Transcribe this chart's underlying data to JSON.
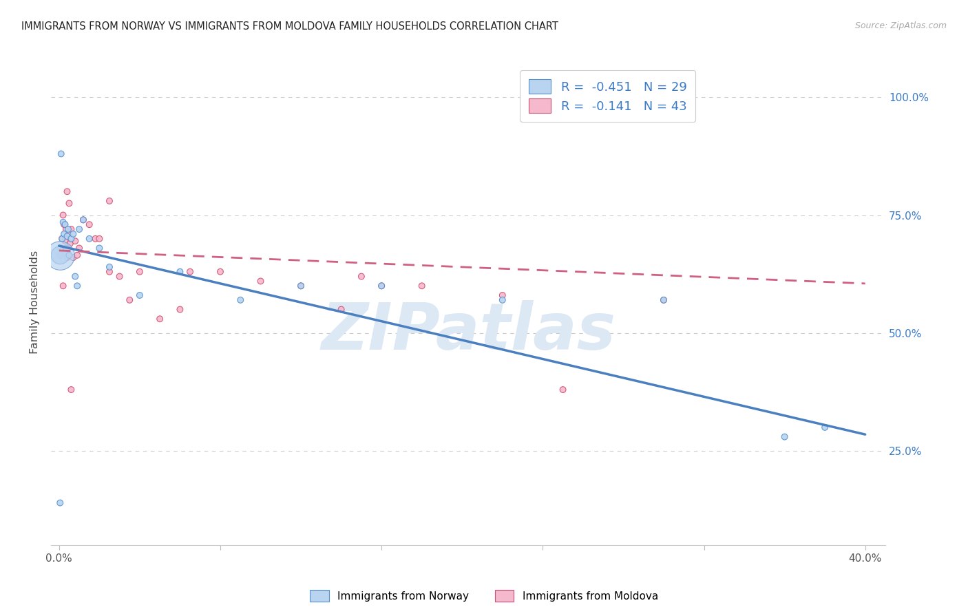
{
  "title": "IMMIGRANTS FROM NORWAY VS IMMIGRANTS FROM MOLDOVA FAMILY HOUSEHOLDS CORRELATION CHART",
  "source": "Source: ZipAtlas.com",
  "ylabel": "Family Households",
  "legend_norway": "Immigrants from Norway",
  "legend_moldova": "Immigrants from Moldova",
  "R_norway": -0.451,
  "N_norway": 29,
  "R_moldova": -0.141,
  "N_moldova": 43,
  "norway_face_color": "#b8d4f0",
  "norway_edge_color": "#5590d0",
  "moldova_face_color": "#f5b8cc",
  "moldova_edge_color": "#d05070",
  "norway_line_color": "#4a7fc0",
  "moldova_line_color": "#d06080",
  "norway_x": [
    0.0005,
    0.001,
    0.0015,
    0.002,
    0.0025,
    0.003,
    0.0035,
    0.004,
    0.0045,
    0.005,
    0.006,
    0.007,
    0.008,
    0.009,
    0.01,
    0.012,
    0.015,
    0.02,
    0.025,
    0.04,
    0.06,
    0.09,
    0.12,
    0.16,
    0.22,
    0.3,
    0.36,
    0.38,
    0.0005
  ],
  "norway_y": [
    0.665,
    0.88,
    0.7,
    0.735,
    0.71,
    0.73,
    0.68,
    0.705,
    0.72,
    0.665,
    0.7,
    0.71,
    0.62,
    0.6,
    0.72,
    0.74,
    0.7,
    0.68,
    0.64,
    0.58,
    0.63,
    0.57,
    0.6,
    0.6,
    0.57,
    0.57,
    0.28,
    0.3,
    0.14
  ],
  "norway_sizes": [
    350,
    40,
    40,
    40,
    40,
    40,
    40,
    40,
    40,
    40,
    40,
    40,
    40,
    40,
    40,
    40,
    40,
    40,
    40,
    40,
    40,
    40,
    40,
    40,
    40,
    40,
    40,
    40,
    40
  ],
  "moldova_x": [
    0.0005,
    0.001,
    0.0015,
    0.002,
    0.0025,
    0.003,
    0.0035,
    0.004,
    0.0045,
    0.005,
    0.0055,
    0.006,
    0.007,
    0.008,
    0.009,
    0.01,
    0.012,
    0.015,
    0.018,
    0.02,
    0.025,
    0.025,
    0.03,
    0.035,
    0.04,
    0.05,
    0.06,
    0.065,
    0.08,
    0.1,
    0.12,
    0.14,
    0.15,
    0.16,
    0.18,
    0.22,
    0.25,
    0.3,
    0.002,
    0.003,
    0.004,
    0.005,
    0.006
  ],
  "moldova_y": [
    0.665,
    0.68,
    0.7,
    0.75,
    0.73,
    0.695,
    0.72,
    0.66,
    0.71,
    0.665,
    0.69,
    0.72,
    0.66,
    0.695,
    0.665,
    0.68,
    0.74,
    0.73,
    0.7,
    0.7,
    0.78,
    0.63,
    0.62,
    0.57,
    0.63,
    0.53,
    0.55,
    0.63,
    0.63,
    0.61,
    0.6,
    0.55,
    0.62,
    0.6,
    0.6,
    0.58,
    0.38,
    0.57,
    0.6,
    0.67,
    0.8,
    0.775,
    0.38
  ],
  "moldova_sizes": [
    40,
    40,
    40,
    40,
    40,
    40,
    40,
    40,
    40,
    40,
    40,
    40,
    40,
    40,
    40,
    40,
    40,
    40,
    40,
    40,
    40,
    40,
    40,
    40,
    40,
    40,
    40,
    40,
    40,
    40,
    40,
    40,
    40,
    40,
    40,
    40,
    40,
    40,
    40,
    40,
    40,
    40,
    40
  ],
  "norway_line_x": [
    0.0,
    0.4
  ],
  "norway_line_y": [
    0.685,
    0.285
  ],
  "moldova_line_x": [
    0.0,
    0.4
  ],
  "moldova_line_y": [
    0.675,
    0.605
  ],
  "xlim": [
    -0.004,
    0.41
  ],
  "ylim": [
    0.05,
    1.08
  ],
  "x_ticks": [
    0.0,
    0.08,
    0.16,
    0.24,
    0.32,
    0.4
  ],
  "x_tick_labels": [
    "0.0%",
    "",
    "",
    "",
    "",
    "40.0%"
  ],
  "y_ticks": [
    0.25,
    0.5,
    0.75,
    1.0
  ],
  "y_tick_labels": [
    "25.0%",
    "50.0%",
    "75.0%",
    "100.0%"
  ],
  "watermark": "ZIPatlas",
  "watermark_color": "#dde8f5",
  "grid_color": "#cccccc",
  "text_color": "#4a4a4a",
  "right_axis_color": "#3a7bc8"
}
